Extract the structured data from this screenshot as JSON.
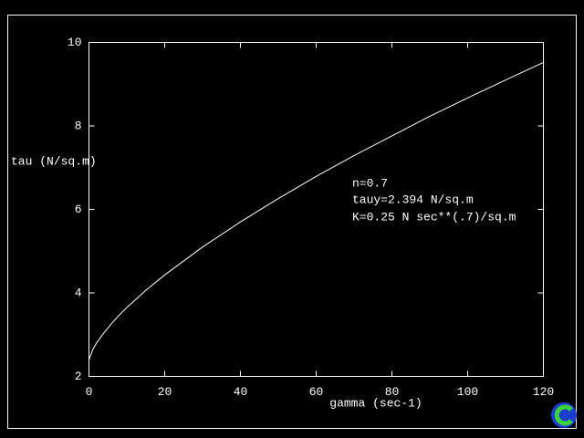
{
  "chart_data": {
    "type": "line",
    "xlabel": "gamma (sec-1)",
    "ylabel": "tau (N/sq.m)",
    "annotations": [
      "n=0.7",
      "tauy=2.394 N/sq.m",
      "K=0.25 N sec**(.7)/sq.m"
    ],
    "x": [
      0,
      1,
      2,
      4,
      6,
      8,
      10,
      15,
      20,
      30,
      40,
      50,
      60,
      70,
      80,
      90,
      100,
      110,
      120
    ],
    "series": [
      {
        "color": "#ffffff",
        "values": [
          2.394,
          2.644,
          2.8,
          3.05,
          3.27,
          3.47,
          3.65,
          4.06,
          4.43,
          5.1,
          5.7,
          6.26,
          6.79,
          7.29,
          7.76,
          8.23,
          8.67,
          9.1,
          9.52
        ]
      }
    ],
    "xlim": [
      0,
      120
    ],
    "ylim": [
      2,
      10
    ],
    "xticks": [
      0,
      20,
      40,
      60,
      80,
      100,
      120
    ],
    "yticks": [
      2,
      4,
      6,
      8,
      10
    ]
  }
}
